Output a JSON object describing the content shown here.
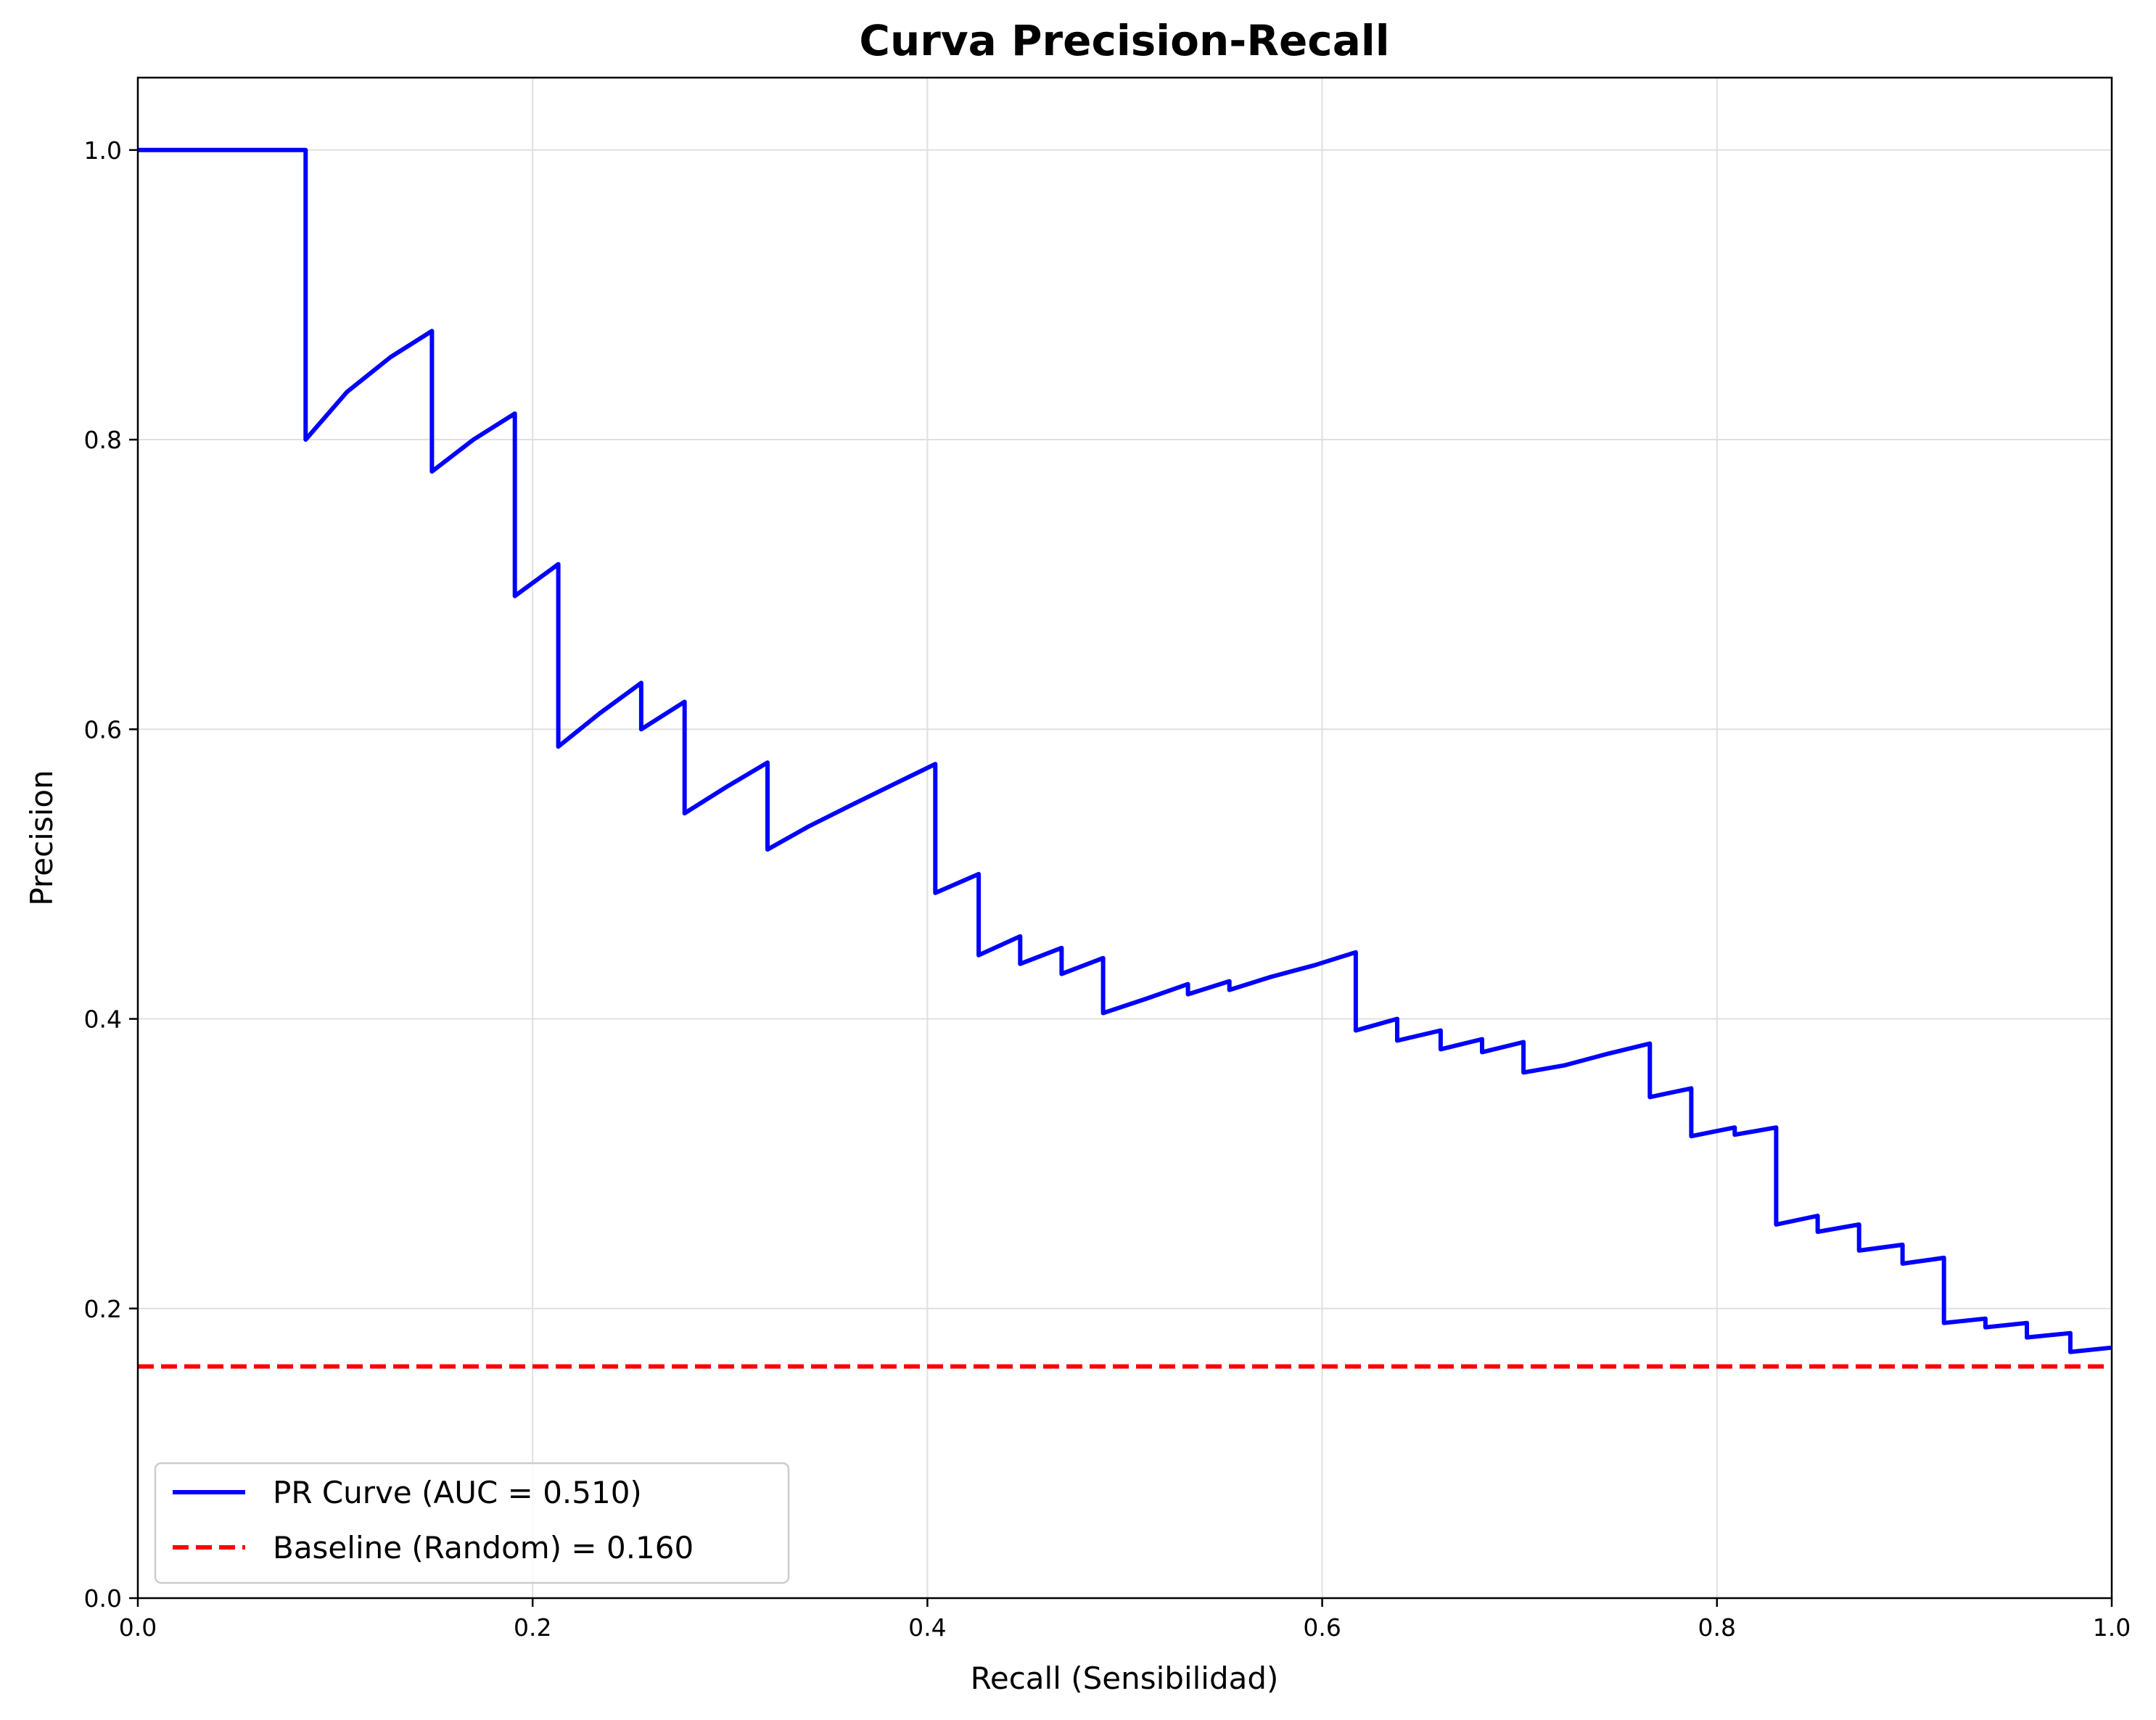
{
  "chart_data": {
    "type": "line",
    "title": "Curva Precision-Recall",
    "xlabel": "Recall (Sensibilidad)",
    "ylabel": "Precision",
    "xlim": [
      0.0,
      1.0
    ],
    "ylim": [
      0.0,
      1.05
    ],
    "x_ticks": [
      0.0,
      0.2,
      0.4,
      0.6,
      0.8,
      1.0
    ],
    "x_tick_labels": [
      "0.0",
      "0.2",
      "0.4",
      "0.6",
      "0.8",
      "1.0"
    ],
    "y_ticks": [
      0.0,
      0.2,
      0.4,
      0.6,
      0.8,
      1.0
    ],
    "y_tick_labels": [
      "0.0",
      "0.2",
      "0.4",
      "0.6",
      "0.8",
      "1.0"
    ],
    "grid": true,
    "legend_position": "lower-left",
    "series": [
      {
        "name": "PR Curve (AUC = 0.510)",
        "color": "#0000ff",
        "style": "solid",
        "points": [
          [
            0.0,
            1.0
          ],
          [
            0.085,
            1.0
          ],
          [
            0.085,
            0.8
          ],
          [
            0.106,
            0.833
          ],
          [
            0.128,
            0.857
          ],
          [
            0.149,
            0.875
          ],
          [
            0.149,
            0.778
          ],
          [
            0.17,
            0.8
          ],
          [
            0.191,
            0.818
          ],
          [
            0.191,
            0.692
          ],
          [
            0.213,
            0.714
          ],
          [
            0.213,
            0.588
          ],
          [
            0.234,
            0.611
          ],
          [
            0.255,
            0.632
          ],
          [
            0.255,
            0.6
          ],
          [
            0.277,
            0.619
          ],
          [
            0.277,
            0.542
          ],
          [
            0.298,
            0.56
          ],
          [
            0.319,
            0.577
          ],
          [
            0.319,
            0.517
          ],
          [
            0.34,
            0.533
          ],
          [
            0.362,
            0.548
          ],
          [
            0.383,
            0.562
          ],
          [
            0.404,
            0.576
          ],
          [
            0.404,
            0.487
          ],
          [
            0.426,
            0.5
          ],
          [
            0.426,
            0.444
          ],
          [
            0.447,
            0.457
          ],
          [
            0.447,
            0.438
          ],
          [
            0.468,
            0.449
          ],
          [
            0.468,
            0.431
          ],
          [
            0.489,
            0.442
          ],
          [
            0.489,
            0.404
          ],
          [
            0.511,
            0.414
          ],
          [
            0.532,
            0.424
          ],
          [
            0.532,
            0.417
          ],
          [
            0.553,
            0.426
          ],
          [
            0.553,
            0.42
          ],
          [
            0.574,
            0.429
          ],
          [
            0.596,
            0.437
          ],
          [
            0.617,
            0.446
          ],
          [
            0.617,
            0.392
          ],
          [
            0.638,
            0.4
          ],
          [
            0.638,
            0.385
          ],
          [
            0.66,
            0.392
          ],
          [
            0.66,
            0.379
          ],
          [
            0.681,
            0.386
          ],
          [
            0.681,
            0.377
          ],
          [
            0.702,
            0.384
          ],
          [
            0.702,
            0.363
          ],
          [
            0.723,
            0.368
          ],
          [
            0.745,
            0.376
          ],
          [
            0.766,
            0.383
          ],
          [
            0.766,
            0.346
          ],
          [
            0.787,
            0.352
          ],
          [
            0.787,
            0.319
          ],
          [
            0.809,
            0.325
          ],
          [
            0.809,
            0.32
          ],
          [
            0.83,
            0.325
          ],
          [
            0.83,
            0.258
          ],
          [
            0.851,
            0.264
          ],
          [
            0.851,
            0.253
          ],
          [
            0.872,
            0.258
          ],
          [
            0.872,
            0.24
          ],
          [
            0.894,
            0.244
          ],
          [
            0.894,
            0.231
          ],
          [
            0.915,
            0.235
          ],
          [
            0.915,
            0.19
          ],
          [
            0.936,
            0.193
          ],
          [
            0.936,
            0.187
          ],
          [
            0.957,
            0.19
          ],
          [
            0.957,
            0.18
          ],
          [
            0.979,
            0.183
          ],
          [
            0.979,
            0.17
          ],
          [
            1.0,
            0.173
          ]
        ]
      },
      {
        "name": "Baseline (Random) = 0.160",
        "color": "#ff0000",
        "style": "dashed",
        "points": [
          [
            0.0,
            0.16
          ],
          [
            1.0,
            0.16
          ]
        ]
      }
    ]
  }
}
